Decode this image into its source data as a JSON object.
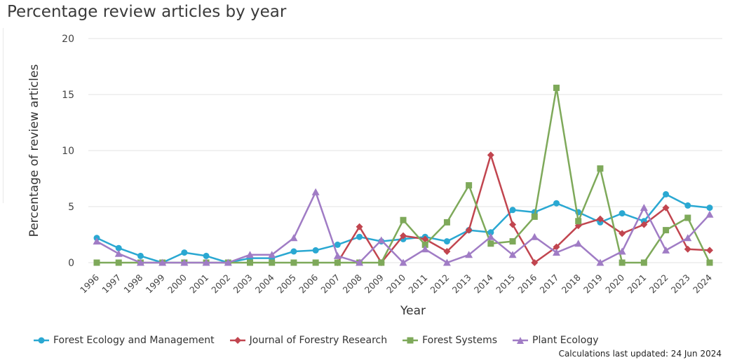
{
  "chart_data": {
    "type": "line",
    "title": "Percentage review articles by year",
    "xlabel": "Year",
    "ylabel": "Percentage of review articles",
    "ylim": [
      0,
      20
    ],
    "yticks": [
      0,
      5,
      10,
      15,
      20
    ],
    "grid": "horizontal",
    "legend_position": "bottom-left",
    "x": [
      "1996",
      "1997",
      "1998",
      "1999",
      "2000",
      "2001",
      "2002",
      "2003",
      "2004",
      "2005",
      "2006",
      "2007",
      "2008",
      "2009",
      "2010",
      "2011",
      "2012",
      "2013",
      "2014",
      "2015",
      "2016",
      "2017",
      "2018",
      "2019",
      "2020",
      "2021",
      "2022",
      "2023",
      "2024"
    ],
    "series": [
      {
        "name": "Forest Ecology and Management",
        "color": "#2aa8d2",
        "marker": "circle",
        "values": [
          2.2,
          1.3,
          0.6,
          0,
          0.9,
          0.6,
          0,
          0.4,
          0.4,
          1.0,
          1.1,
          1.6,
          2.3,
          1.9,
          2.1,
          2.3,
          1.9,
          2.9,
          2.7,
          4.7,
          4.5,
          5.3,
          4.5,
          3.6,
          4.4,
          3.7,
          6.1,
          5.1,
          4.9
        ]
      },
      {
        "name": "Journal of Forestry Research",
        "color": "#c1454f",
        "marker": "diamond",
        "values": [
          null,
          null,
          null,
          null,
          null,
          null,
          null,
          null,
          null,
          null,
          null,
          0,
          3.2,
          0,
          2.4,
          2.1,
          1.0,
          2.9,
          9.6,
          3.4,
          0,
          1.4,
          3.3,
          3.9,
          2.6,
          3.4,
          4.9,
          1.2,
          1.1
        ]
      },
      {
        "name": "Forest Systems",
        "color": "#7ea95a",
        "marker": "square",
        "values": [
          0,
          0,
          0,
          0,
          0,
          0,
          0,
          0,
          0,
          0,
          0,
          0,
          0,
          0,
          3.8,
          1.6,
          3.6,
          6.9,
          1.7,
          1.9,
          4.1,
          15.6,
          3.7,
          8.4,
          0,
          0,
          2.9,
          4.0,
          0
        ]
      },
      {
        "name": "Plant Ecology",
        "color": "#a07cc5",
        "marker": "triangle",
        "values": [
          1.9,
          0.8,
          0,
          0,
          0,
          0,
          0,
          0.7,
          0.7,
          2.2,
          6.3,
          0.6,
          0,
          2.0,
          0,
          1.2,
          0,
          0.7,
          2.3,
          0.7,
          2.3,
          0.9,
          1.7,
          0,
          1.0,
          4.9,
          1.1,
          2.2,
          4.3
        ]
      }
    ]
  },
  "footer": "Calculations last updated: 24 Jun 2024"
}
